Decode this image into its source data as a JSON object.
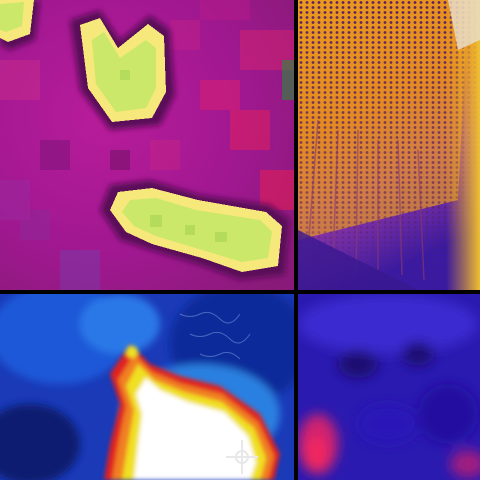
{
  "thumbnails": [
    {
      "id": "tl",
      "palette": "ironbow",
      "blob_color": "#d8f08a",
      "bg_color": "#b01890"
    },
    {
      "id": "tr",
      "palette": "ironbow",
      "hot_color": "#f0b020",
      "bg_color": "#6a2cc0"
    },
    {
      "id": "bl",
      "palette": "rainbow",
      "hot_color": "#ffffff",
      "bg_color": "#1040c8",
      "has_crosshair": true
    },
    {
      "id": "br",
      "palette": "ironbow",
      "hot_color": "#e0207a",
      "bg_color": "#2a1ab0"
    }
  ],
  "colors": {
    "separator": "#000000",
    "crosshair": "#e8e8e8"
  }
}
